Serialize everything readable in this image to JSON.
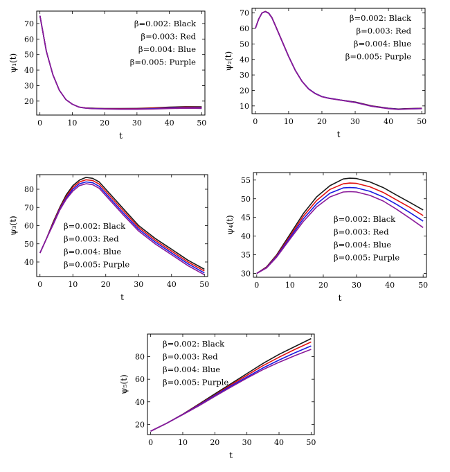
{
  "chart_data": [
    {
      "type": "line",
      "ylabel": "ψ₁(t)",
      "xlabel": "t",
      "xlim": [
        -1,
        51
      ],
      "ylim": [
        11,
        78
      ],
      "xticks": [
        0,
        10,
        20,
        30,
        40,
        50
      ],
      "yticks": [
        20,
        30,
        40,
        50,
        60,
        70
      ],
      "legend_position": "top-right",
      "legend": [
        "β=0.002:  Black",
        "β=0.003:  Red",
        "β=0.004:  Blue",
        "β=0.005:  Purple"
      ],
      "series": [
        {
          "name": "β=0.002",
          "color": "#1a1a1a",
          "x": [
            0,
            2,
            4,
            6,
            8,
            10,
            12,
            14,
            16,
            18,
            20,
            25,
            30,
            35,
            40,
            45,
            50
          ],
          "y": [
            75,
            52,
            37,
            27,
            21,
            18,
            16.2,
            15.6,
            15.4,
            15.3,
            15.2,
            15.2,
            15.3,
            15.6,
            16.1,
            16.4,
            16.3
          ]
        },
        {
          "name": "β=0.003",
          "color": "#e01010",
          "x": [
            0,
            2,
            4,
            6,
            8,
            10,
            12,
            14,
            16,
            18,
            20,
            25,
            30,
            35,
            40,
            45,
            50
          ],
          "y": [
            75,
            52,
            37,
            27,
            21,
            18,
            16.2,
            15.6,
            15.3,
            15.2,
            15.1,
            15.1,
            15.1,
            15.4,
            15.8,
            16.1,
            16.0
          ]
        },
        {
          "name": "β=0.004",
          "color": "#1a1ae0",
          "x": [
            0,
            2,
            4,
            6,
            8,
            10,
            12,
            14,
            16,
            18,
            20,
            25,
            30,
            35,
            40,
            45,
            50
          ],
          "y": [
            75,
            52,
            37,
            27,
            21,
            18,
            16.2,
            15.5,
            15.2,
            15.1,
            15.0,
            14.9,
            14.9,
            15.1,
            15.5,
            15.7,
            15.6
          ]
        },
        {
          "name": "β=0.005",
          "color": "#8a1a9a",
          "x": [
            0,
            2,
            4,
            6,
            8,
            10,
            12,
            14,
            16,
            18,
            20,
            25,
            30,
            35,
            40,
            45,
            50
          ],
          "y": [
            75,
            52,
            37,
            27,
            21,
            18,
            16.2,
            15.5,
            15.1,
            15.0,
            14.9,
            14.7,
            14.7,
            14.9,
            15.2,
            15.4,
            15.3
          ]
        }
      ]
    },
    {
      "type": "line",
      "ylabel": "ψ₂(t)",
      "xlabel": "t",
      "xlim": [
        -1,
        51
      ],
      "ylim": [
        5,
        73
      ],
      "xticks": [
        0,
        10,
        20,
        30,
        40,
        50
      ],
      "yticks": [
        10,
        20,
        30,
        40,
        50,
        60,
        70
      ],
      "legend_position": "top-right",
      "legend": [
        "β=0.002:  Black",
        "β=0.003:  Red",
        "β=0.004:  Blue",
        "β=0.005:  Purple"
      ],
      "series": [
        {
          "name": "β=0.002",
          "color": "#1a1a1a",
          "x": [
            0,
            1,
            2,
            3,
            4,
            5,
            6,
            8,
            10,
            12,
            14,
            16,
            18,
            20,
            22,
            25,
            30,
            35,
            40,
            43,
            45,
            50
          ],
          "y": [
            60,
            66,
            70,
            71,
            70,
            67,
            62,
            52,
            42,
            33,
            26,
            21,
            18,
            16,
            15,
            14,
            12.5,
            10,
            8.5,
            8,
            8.2,
            8.5
          ]
        },
        {
          "name": "β=0.003",
          "color": "#e01010",
          "x": [
            0,
            1,
            2,
            3,
            4,
            5,
            6,
            8,
            10,
            12,
            14,
            16,
            18,
            20,
            22,
            25,
            30,
            35,
            40,
            43,
            45,
            50
          ],
          "y": [
            60,
            66,
            70,
            71,
            70,
            67,
            62,
            52,
            42,
            33,
            26,
            21,
            18,
            16,
            15,
            14,
            12.4,
            9.9,
            8.4,
            7.9,
            8.1,
            8.4
          ]
        },
        {
          "name": "β=0.004",
          "color": "#1a1ae0",
          "x": [
            0,
            1,
            2,
            3,
            4,
            5,
            6,
            8,
            10,
            12,
            14,
            16,
            18,
            20,
            22,
            25,
            30,
            35,
            40,
            43,
            45,
            50
          ],
          "y": [
            60,
            66,
            70,
            70.9,
            69.9,
            66.9,
            61.9,
            51.9,
            41.9,
            33,
            26,
            21,
            18,
            16,
            15,
            14,
            12.3,
            9.8,
            8.3,
            7.8,
            8,
            8.3
          ]
        },
        {
          "name": "β=0.005",
          "color": "#8a1a9a",
          "x": [
            0,
            1,
            2,
            3,
            4,
            5,
            6,
            8,
            10,
            12,
            14,
            16,
            18,
            20,
            22,
            25,
            30,
            35,
            40,
            43,
            45,
            50
          ],
          "y": [
            60,
            66,
            70,
            70.8,
            69.8,
            66.8,
            61.8,
            51.8,
            41.8,
            32.9,
            25.9,
            20.9,
            17.9,
            15.9,
            14.9,
            13.9,
            12.2,
            9.7,
            8.2,
            7.7,
            7.9,
            8.2
          ]
        }
      ]
    },
    {
      "type": "line",
      "ylabel": "ψ₃(t)",
      "xlabel": "t",
      "xlim": [
        -1,
        51
      ],
      "ylim": [
        32,
        88
      ],
      "xticks": [
        0,
        10,
        20,
        30,
        40,
        50
      ],
      "yticks": [
        40,
        50,
        60,
        70,
        80
      ],
      "legend_position": "bottom-left",
      "legend": [
        "β=0.002:  Black",
        "β=0.003:  Red",
        "β=0.004:  Blue",
        "β=0.005:  Purple"
      ],
      "series": [
        {
          "name": "β=0.002",
          "color": "#1a1a1a",
          "x": [
            0,
            2,
            4,
            6,
            8,
            10,
            12,
            14,
            16,
            18,
            20,
            25,
            30,
            35,
            40,
            45,
            50
          ],
          "y": [
            45,
            53,
            62,
            70,
            77,
            82,
            85,
            86.5,
            86,
            84,
            80,
            70,
            60,
            53,
            47,
            41,
            36
          ]
        },
        {
          "name": "β=0.003",
          "color": "#e01010",
          "x": [
            0,
            2,
            4,
            6,
            8,
            10,
            12,
            14,
            16,
            18,
            20,
            25,
            30,
            35,
            40,
            45,
            50
          ],
          "y": [
            45,
            53,
            61.5,
            69.5,
            76,
            81,
            84,
            85.2,
            84.8,
            82.8,
            78.8,
            68.8,
            59,
            52,
            46,
            40,
            35
          ]
        },
        {
          "name": "β=0.004",
          "color": "#1a1ae0",
          "x": [
            0,
            2,
            4,
            6,
            8,
            10,
            12,
            14,
            16,
            18,
            20,
            25,
            30,
            35,
            40,
            45,
            50
          ],
          "y": [
            45,
            53,
            61,
            69,
            75.2,
            80,
            83,
            84,
            83.6,
            81.6,
            77.6,
            67.6,
            58,
            51,
            45,
            39,
            34
          ]
        },
        {
          "name": "β=0.005",
          "color": "#8a1a9a",
          "x": [
            0,
            2,
            4,
            6,
            8,
            10,
            12,
            14,
            16,
            18,
            20,
            25,
            30,
            35,
            40,
            45,
            50
          ],
          "y": [
            45,
            53,
            60.5,
            68.5,
            74.5,
            79,
            82,
            83,
            82.5,
            80.5,
            76.5,
            66.5,
            57,
            50,
            44,
            38,
            33
          ]
        }
      ]
    },
    {
      "type": "line",
      "ylabel": "ψ₄(t)",
      "xlabel": "t",
      "xlim": [
        -1,
        51
      ],
      "ylim": [
        29,
        57
      ],
      "xticks": [
        0,
        10,
        20,
        30,
        40,
        50
      ],
      "yticks": [
        30,
        35,
        40,
        45,
        50,
        55
      ],
      "legend_position": "bottom-right",
      "legend": [
        "β=0.002:  Black",
        "β=0.003:  Red",
        "β=0.004:  Blue",
        "β=0.005:  Purple"
      ],
      "series": [
        {
          "name": "β=0.002",
          "color": "#1a1a1a",
          "x": [
            0,
            3,
            6,
            10,
            14,
            18,
            22,
            26,
            28,
            30,
            34,
            38,
            42,
            46,
            50
          ],
          "y": [
            30,
            31.8,
            35,
            40.5,
            46,
            50.5,
            53.5,
            55.3,
            55.5,
            55.4,
            54.5,
            53,
            51,
            49,
            47
          ]
        },
        {
          "name": "β=0.003",
          "color": "#e01010",
          "x": [
            0,
            3,
            6,
            10,
            14,
            18,
            22,
            26,
            28,
            30,
            34,
            38,
            42,
            46,
            50
          ],
          "y": [
            30,
            31.7,
            34.8,
            40,
            45.3,
            49.5,
            52.5,
            54,
            54.2,
            54.1,
            53.2,
            51.7,
            49.7,
            47.7,
            45.5
          ]
        },
        {
          "name": "β=0.004",
          "color": "#1a1ae0",
          "x": [
            0,
            3,
            6,
            10,
            14,
            18,
            22,
            26,
            28,
            30,
            34,
            38,
            42,
            46,
            50
          ],
          "y": [
            30,
            31.6,
            34.6,
            39.6,
            44.6,
            48.6,
            51.5,
            52.9,
            53,
            52.9,
            52,
            50.5,
            48.5,
            46.3,
            44
          ]
        },
        {
          "name": "β=0.005",
          "color": "#8a1a9a",
          "x": [
            0,
            3,
            6,
            10,
            14,
            18,
            22,
            26,
            28,
            30,
            34,
            38,
            42,
            46,
            50
          ],
          "y": [
            30,
            31.5,
            34.4,
            39.2,
            43.9,
            47.8,
            50.5,
            51.8,
            51.9,
            51.8,
            50.9,
            49.4,
            47.2,
            44.8,
            42.3
          ]
        }
      ]
    },
    {
      "type": "line",
      "ylabel": "ψ₅(t)",
      "xlabel": "t",
      "xlim": [
        -1,
        51
      ],
      "ylim": [
        11,
        100
      ],
      "xticks": [
        0,
        10,
        20,
        30,
        40,
        50
      ],
      "yticks": [
        20,
        40,
        60,
        80
      ],
      "legend_position": "top-left",
      "legend": [
        "β=0.002:  Black",
        "β=0.003:  Red",
        "β=0.004:  Blue",
        "β=0.005:  Purple"
      ],
      "series": [
        {
          "name": "β=0.002",
          "color": "#1a1a1a",
          "x": [
            0,
            5,
            10,
            15,
            20,
            25,
            30,
            35,
            40,
            45,
            50
          ],
          "y": [
            14,
            21,
            29,
            38,
            47,
            56,
            65,
            74,
            82,
            89,
            96
          ]
        },
        {
          "name": "β=0.003",
          "color": "#e01010",
          "x": [
            0,
            5,
            10,
            15,
            20,
            25,
            30,
            35,
            40,
            45,
            50
          ],
          "y": [
            14,
            21,
            29,
            37.5,
            46,
            55,
            63.5,
            72,
            79.5,
            86.5,
            93
          ]
        },
        {
          "name": "β=0.004",
          "color": "#1a1ae0",
          "x": [
            0,
            5,
            10,
            15,
            20,
            25,
            30,
            35,
            40,
            45,
            50
          ],
          "y": [
            14,
            21,
            28.8,
            37,
            45.5,
            54,
            62,
            70,
            77,
            83.5,
            89.5
          ]
        },
        {
          "name": "β=0.005",
          "color": "#8a1a9a",
          "x": [
            0,
            5,
            10,
            15,
            20,
            25,
            30,
            35,
            40,
            45,
            50
          ],
          "y": [
            14,
            21,
            28.6,
            36.5,
            44.8,
            53,
            61,
            68.5,
            75,
            81,
            86.5
          ]
        }
      ]
    }
  ]
}
